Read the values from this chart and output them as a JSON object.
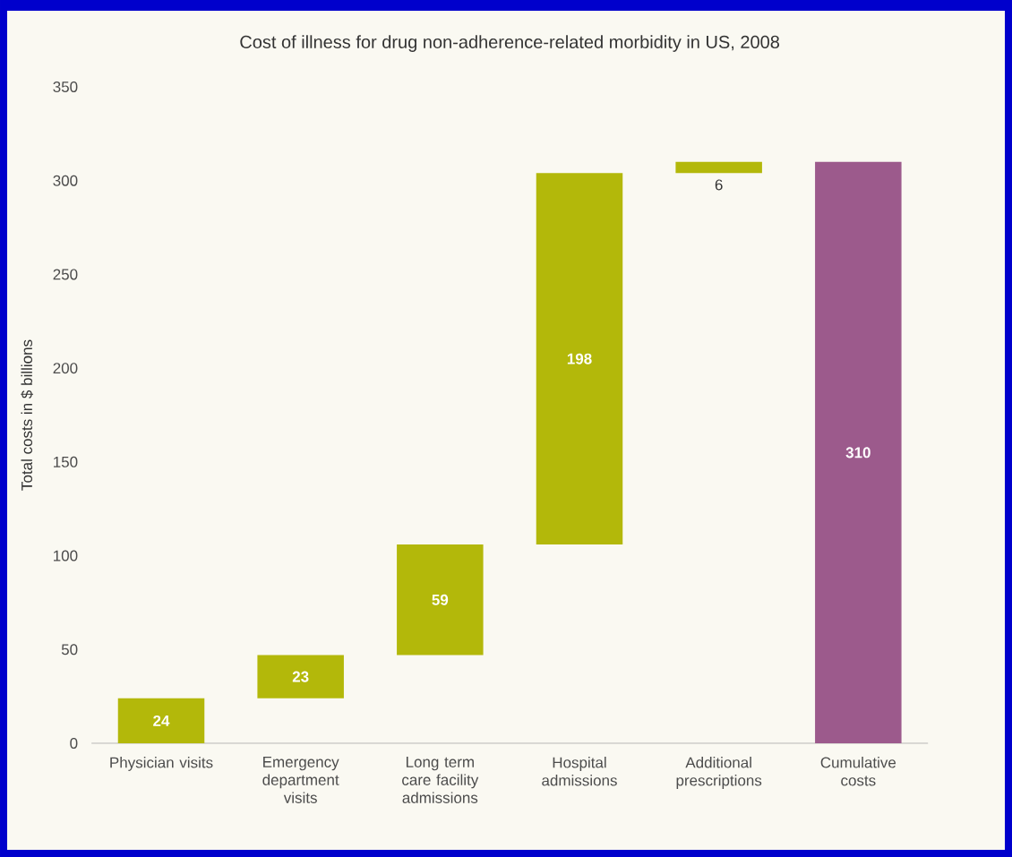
{
  "chart_data": {
    "type": "bar",
    "title": "Cost of illness for drug non-adherence-related morbidity in US, 2008",
    "ylabel": "Total costs in $ billions",
    "categories": [
      "Physician visits",
      "Emergency department visits",
      "Long term care facility admissions",
      "Hospital admissions",
      "Additional prescriptions",
      "Cumulative costs"
    ],
    "values": [
      24,
      23,
      59,
      198,
      6,
      310
    ],
    "base": [
      0,
      24,
      47,
      106,
      304,
      0
    ],
    "colors": [
      "#b3b80a",
      "#b3b80a",
      "#b3b80a",
      "#b3b80a",
      "#b3b80a",
      "#9c5a8c"
    ],
    "ylim": [
      0,
      350
    ],
    "yticks": [
      0,
      50,
      100,
      150,
      200,
      250,
      300,
      350
    ],
    "data_labels": true
  }
}
